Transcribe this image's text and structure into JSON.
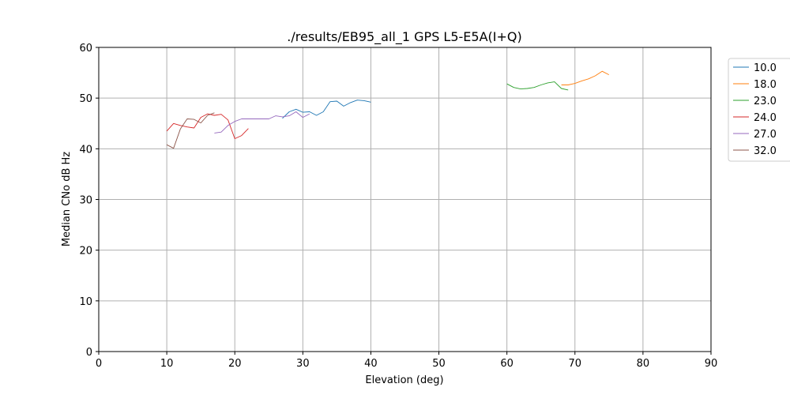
{
  "chart_data": {
    "type": "line",
    "title": "./results/EB95_all_1 GPS L5-E5A(I+Q)",
    "xlabel": "Elevation (deg)",
    "ylabel": "Median CNo dB Hz",
    "xlim": [
      0,
      90
    ],
    "ylim": [
      0,
      60
    ],
    "xticks": [
      0,
      10,
      20,
      30,
      40,
      50,
      60,
      70,
      80,
      90
    ],
    "yticks": [
      0,
      10,
      20,
      30,
      40,
      50,
      60
    ],
    "grid": true,
    "legend_position": "upper-right-outside",
    "series": [
      {
        "name": "10.0",
        "color": "#1f77b4",
        "x": [
          27,
          28,
          29,
          30,
          31,
          32,
          33,
          34,
          35,
          36,
          37,
          38,
          39,
          40
        ],
        "y": [
          46.0,
          47.3,
          47.8,
          47.2,
          47.3,
          46.6,
          47.3,
          49.3,
          49.4,
          48.4,
          49.1,
          49.6,
          49.5,
          49.2
        ]
      },
      {
        "name": "18.0",
        "color": "#ff7f0e",
        "x": [
          68,
          69,
          70,
          71,
          72,
          73,
          74,
          75
        ],
        "y": [
          52.6,
          52.6,
          52.9,
          53.4,
          53.8,
          54.4,
          55.3,
          54.6
        ]
      },
      {
        "name": "23.0",
        "color": "#2ca02c",
        "x": [
          60,
          61,
          62,
          63,
          64,
          65,
          66,
          67,
          68,
          69
        ],
        "y": [
          52.8,
          52.1,
          51.8,
          51.9,
          52.1,
          52.6,
          53.0,
          53.2,
          51.9,
          51.6
        ]
      },
      {
        "name": "24.0",
        "color": "#d62728",
        "x": [
          10,
          11,
          12,
          13,
          14,
          15,
          16,
          17,
          18,
          19,
          20,
          21,
          22
        ],
        "y": [
          43.5,
          45.0,
          44.6,
          44.3,
          44.1,
          46.2,
          46.9,
          46.6,
          46.8,
          45.7,
          42.0,
          42.6,
          44.0
        ]
      },
      {
        "name": "27.0",
        "color": "#9467bd",
        "x": [
          17,
          18,
          19,
          20,
          21,
          22,
          23,
          24,
          25,
          26,
          27,
          28,
          29,
          30,
          31
        ],
        "y": [
          43.1,
          43.3,
          44.6,
          45.4,
          45.9,
          45.9,
          45.9,
          45.9,
          45.9,
          46.5,
          46.3,
          46.5,
          47.3,
          46.2,
          46.9
        ]
      },
      {
        "name": "32.0",
        "color": "#8c564b",
        "x": [
          10,
          11,
          12,
          13,
          14,
          15,
          16,
          17
        ],
        "y": [
          40.8,
          40.1,
          43.9,
          45.9,
          45.8,
          45.1,
          46.6,
          47.1
        ]
      }
    ]
  }
}
